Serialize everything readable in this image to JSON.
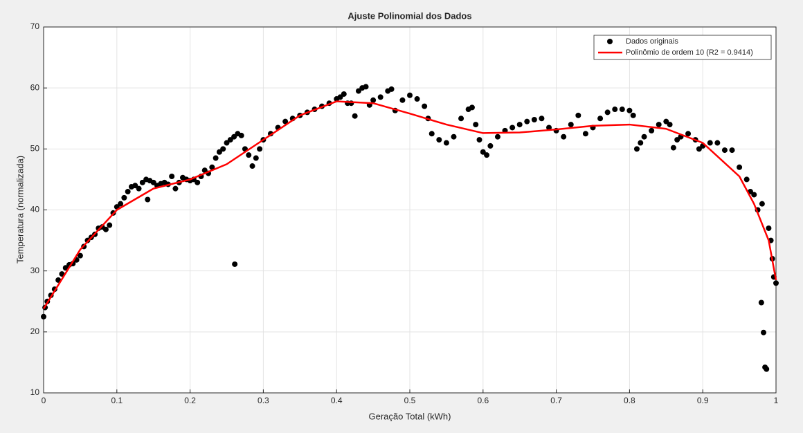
{
  "chart_data": {
    "type": "scatter",
    "title": "Ajuste Polinomial dos Dados",
    "x_label": "Geração Total (kWh)",
    "y_label": "Temperatura (normalizada)",
    "xlim": [
      0,
      1
    ],
    "ylim": [
      10,
      70
    ],
    "xticks": [
      0,
      0.1,
      0.2,
      0.3,
      0.4,
      0.5,
      0.6,
      0.7,
      0.8,
      0.9,
      1
    ],
    "yticks": [
      10,
      20,
      30,
      40,
      50,
      60,
      70
    ],
    "grid": true,
    "legend": "northeast",
    "series": [
      {
        "name": "Dados originais",
        "type": "scatter",
        "color": "#000000",
        "x": [
          0,
          0.002,
          0.005,
          0.01,
          0.015,
          0.02,
          0.025,
          0.03,
          0.035,
          0.04,
          0.045,
          0.05,
          0.055,
          0.06,
          0.065,
          0.07,
          0.075,
          0.08,
          0.085,
          0.09,
          0.095,
          0.1,
          0.105,
          0.11,
          0.115,
          0.12,
          0.125,
          0.13,
          0.135,
          0.14,
          0.142,
          0.145,
          0.15,
          0.155,
          0.16,
          0.165,
          0.17,
          0.175,
          0.18,
          0.185,
          0.19,
          0.195,
          0.2,
          0.205,
          0.21,
          0.215,
          0.22,
          0.225,
          0.23,
          0.235,
          0.24,
          0.245,
          0.25,
          0.255,
          0.26,
          0.261,
          0.265,
          0.27,
          0.275,
          0.28,
          0.285,
          0.29,
          0.295,
          0.3,
          0.31,
          0.32,
          0.33,
          0.34,
          0.35,
          0.36,
          0.37,
          0.38,
          0.39,
          0.4,
          0.405,
          0.41,
          0.415,
          0.42,
          0.425,
          0.43,
          0.435,
          0.44,
          0.445,
          0.45,
          0.46,
          0.47,
          0.475,
          0.48,
          0.49,
          0.5,
          0.51,
          0.52,
          0.525,
          0.53,
          0.54,
          0.55,
          0.56,
          0.57,
          0.58,
          0.585,
          0.59,
          0.595,
          0.6,
          0.605,
          0.61,
          0.62,
          0.63,
          0.64,
          0.65,
          0.66,
          0.67,
          0.68,
          0.69,
          0.7,
          0.71,
          0.72,
          0.73,
          0.74,
          0.75,
          0.76,
          0.77,
          0.78,
          0.79,
          0.8,
          0.805,
          0.81,
          0.815,
          0.82,
          0.83,
          0.84,
          0.85,
          0.855,
          0.86,
          0.865,
          0.87,
          0.88,
          0.89,
          0.895,
          0.9,
          0.91,
          0.92,
          0.93,
          0.94,
          0.95,
          0.96,
          0.965,
          0.97,
          0.975,
          0.98,
          0.981,
          0.983,
          0.985,
          0.987,
          0.99,
          0.993,
          0.995,
          0.997,
          1.0
        ],
        "values": [
          22.5,
          24,
          25,
          26,
          27,
          28.5,
          29.5,
          30.5,
          31,
          31.2,
          31.8,
          32.5,
          34,
          35,
          35.5,
          36,
          37,
          37.2,
          36.8,
          37.5,
          39.5,
          40.5,
          41,
          42,
          43,
          43.8,
          44,
          43.5,
          44.5,
          45,
          41.7,
          44.8,
          44.5,
          44,
          44.3,
          44.5,
          44.2,
          45.5,
          43.5,
          44.5,
          45.3,
          45,
          44.8,
          45,
          44.5,
          45.5,
          46.5,
          46,
          47,
          48.5,
          49.5,
          50,
          51,
          51.5,
          52,
          31.1,
          52.5,
          52.2,
          50,
          49,
          47.2,
          48.5,
          50,
          51.5,
          52.5,
          53.5,
          54.5,
          55,
          55.5,
          56,
          56.5,
          57,
          57.5,
          58.2,
          58.5,
          59,
          57.5,
          57.5,
          55.4,
          59.5,
          60,
          60.2,
          57.2,
          58,
          58.5,
          59.5,
          59.8,
          56.3,
          58,
          58.8,
          58.2,
          57,
          55,
          52.5,
          51.5,
          51,
          52,
          55,
          56.5,
          56.8,
          54,
          51.5,
          49.5,
          49,
          50.5,
          52,
          53,
          53.5,
          54,
          54.5,
          54.8,
          55,
          53.5,
          53,
          52,
          54,
          55.5,
          52.5,
          53.5,
          55,
          56,
          56.5,
          56.5,
          56.3,
          55.5,
          50,
          51,
          52,
          53,
          54,
          54.5,
          54,
          50.2,
          51.5,
          52,
          52.5,
          51.5,
          50,
          50.5,
          51,
          51,
          49.8,
          49.8,
          47,
          45,
          43,
          42.5,
          40,
          24.8,
          41,
          19.9,
          14.2,
          13.9,
          37,
          35,
          32,
          29,
          28
        ]
      },
      {
        "name": "Polinômio de ordem 10 (R2 = 0.9414)",
        "type": "line",
        "color": "#ff0000",
        "x": [
          0,
          0.05,
          0.1,
          0.15,
          0.2,
          0.25,
          0.3,
          0.35,
          0.4,
          0.45,
          0.5,
          0.55,
          0.6,
          0.65,
          0.7,
          0.75,
          0.8,
          0.85,
          0.9,
          0.95,
          0.97,
          0.99,
          1.0
        ],
        "values": [
          23.8,
          33.5,
          40,
          43.5,
          45,
          47.5,
          51.5,
          55.5,
          57.8,
          57.5,
          55.8,
          54,
          52.6,
          52.7,
          53.2,
          53.8,
          54,
          53.3,
          51,
          45.5,
          41,
          35,
          28.5
        ]
      }
    ]
  }
}
